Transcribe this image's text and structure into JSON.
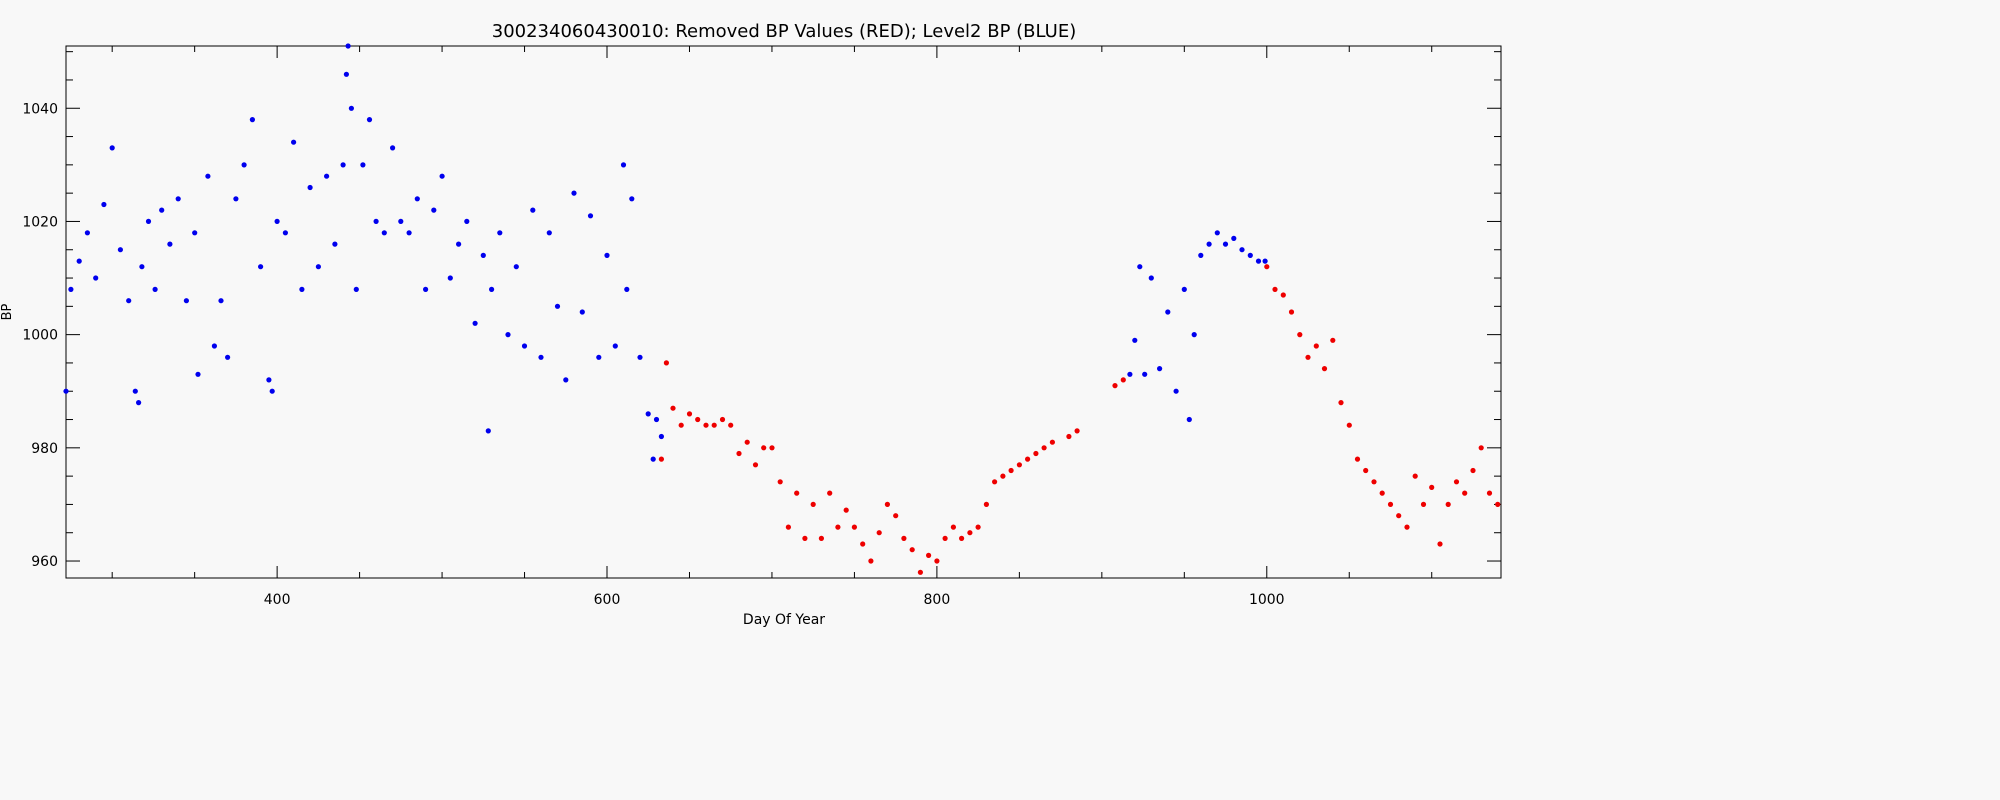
{
  "chart_data": {
    "type": "scatter",
    "title": "300234060430010: Removed BP Values (RED); Level2 BP (BLUE)",
    "xlabel": "Day Of Year",
    "ylabel": "BP",
    "xlim": [
      272,
      1142
    ],
    "ylim": [
      957,
      1051
    ],
    "xticks": [
      400,
      600,
      800,
      1000
    ],
    "yticks": [
      960,
      980,
      1000,
      1020,
      1040
    ],
    "grid": false,
    "series": [
      {
        "color": "#0000ee",
        "x": [
          272,
          275,
          280,
          285,
          290,
          295,
          300,
          305,
          310,
          314,
          316,
          318,
          322,
          326,
          330,
          335,
          340,
          345,
          350,
          352,
          358,
          362,
          366,
          370,
          375,
          380,
          385,
          390,
          395,
          397,
          400,
          405,
          410,
          415,
          420,
          425,
          430,
          435,
          440,
          442,
          443,
          445,
          448,
          452,
          456,
          460,
          465,
          470,
          475,
          480,
          485,
          490,
          495,
          500,
          505,
          510,
          515,
          520,
          525,
          528,
          530,
          535,
          540,
          545,
          550,
          555,
          560,
          565,
          570,
          575,
          580,
          585,
          590,
          595,
          600,
          605,
          610,
          612,
          615,
          620,
          625,
          628,
          630,
          633,
          917,
          920,
          923,
          926,
          930,
          935,
          940,
          945,
          950,
          953,
          956,
          960,
          965,
          970,
          975,
          980,
          985,
          990,
          995,
          999
        ],
        "y": [
          990,
          1008,
          1013,
          1018,
          1010,
          1023,
          1033,
          1015,
          1006,
          990,
          988,
          1012,
          1020,
          1008,
          1022,
          1016,
          1024,
          1006,
          1018,
          993,
          1028,
          998,
          1006,
          996,
          1024,
          1030,
          1038,
          1012,
          992,
          990,
          1020,
          1018,
          1034,
          1008,
          1026,
          1012,
          1028,
          1016,
          1030,
          1046,
          1051,
          1040,
          1008,
          1030,
          1038,
          1020,
          1018,
          1033,
          1020,
          1018,
          1024,
          1008,
          1022,
          1028,
          1010,
          1016,
          1020,
          1002,
          1014,
          983,
          1008,
          1018,
          1000,
          1012,
          998,
          1022,
          996,
          1018,
          1005,
          992,
          1025,
          1004,
          1021,
          996,
          1014,
          998,
          1030,
          1008,
          1024,
          996,
          986,
          978,
          985,
          982,
          993,
          999,
          1012,
          993,
          1010,
          994,
          1004,
          990,
          1008,
          985,
          1000,
          1014,
          1016,
          1018,
          1016,
          1017,
          1015,
          1014,
          1013,
          1013
        ]
      },
      {
        "color": "#ee0000",
        "x": [
          633,
          636,
          640,
          645,
          650,
          655,
          660,
          665,
          670,
          675,
          680,
          685,
          690,
          695,
          700,
          705,
          710,
          715,
          720,
          725,
          730,
          735,
          740,
          745,
          750,
          755,
          760,
          765,
          770,
          775,
          780,
          785,
          790,
          795,
          800,
          805,
          810,
          815,
          820,
          825,
          830,
          835,
          840,
          845,
          850,
          855,
          860,
          865,
          870,
          880,
          885,
          908,
          913,
          1000,
          1005,
          1010,
          1015,
          1020,
          1025,
          1030,
          1035,
          1040,
          1045,
          1050,
          1055,
          1060,
          1065,
          1070,
          1075,
          1080,
          1085,
          1090,
          1095,
          1100,
          1105,
          1110,
          1115,
          1120,
          1125,
          1130,
          1135,
          1140
        ],
        "y": [
          978,
          995,
          987,
          984,
          986,
          985,
          984,
          984,
          985,
          984,
          979,
          981,
          977,
          980,
          980,
          974,
          966,
          972,
          964,
          970,
          964,
          972,
          966,
          969,
          966,
          963,
          960,
          965,
          970,
          968,
          964,
          962,
          958,
          961,
          960,
          964,
          966,
          964,
          965,
          966,
          970,
          974,
          975,
          976,
          977,
          978,
          979,
          980,
          981,
          982,
          983,
          991,
          992,
          1012,
          1008,
          1007,
          1004,
          1000,
          996,
          998,
          994,
          999,
          988,
          984,
          978,
          976,
          974,
          972,
          970,
          968,
          966,
          975,
          970,
          973,
          963,
          970,
          974,
          972,
          976,
          980,
          972,
          970
        ]
      }
    ]
  }
}
